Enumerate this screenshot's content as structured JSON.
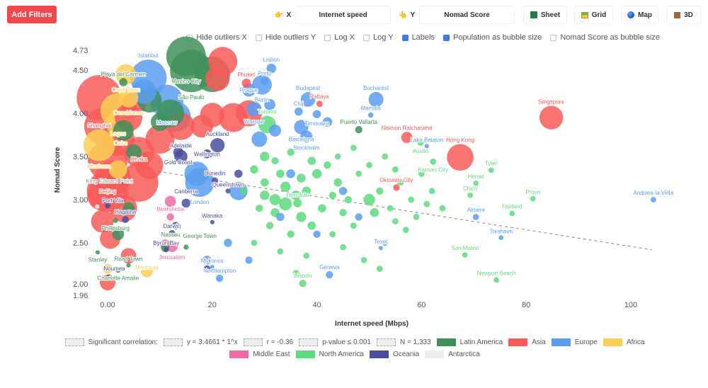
{
  "toolbar": {
    "add_filters": "Add Filters",
    "x_label": "X",
    "x_value": "Internet speed",
    "x_icon": "👉",
    "y_label": "Y",
    "y_value": "Nomad Score",
    "y_icon": "👆",
    "sheet": "Sheet",
    "grid": "Grid",
    "map": "Map",
    "three_d": "3D"
  },
  "options": [
    {
      "label": "Hide outliers X",
      "checked": false
    },
    {
      "label": "Hide outliers Y",
      "checked": false
    },
    {
      "label": "Log X",
      "checked": false
    },
    {
      "label": "Log Y",
      "checked": false
    },
    {
      "label": "Labels",
      "checked": true
    },
    {
      "label": "Population as bubble size",
      "checked": true
    },
    {
      "label": "Nomad Score as bubble size",
      "checked": false
    }
  ],
  "stats": {
    "significant": "Significant correlation:",
    "equation": "y = 3.4661 * 1^x",
    "r": "r = -0.36",
    "p": "p-value ≤ 0.001",
    "n": "N = 1,333"
  },
  "chart_data": {
    "type": "scatter",
    "xlabel": "Internet speed (Mbps)",
    "ylabel": "Nomad Score",
    "xlim": [
      -3,
      105
    ],
    "ylim": [
      1.96,
      4.73
    ],
    "x_ticks": [
      "0.00",
      "20",
      "40",
      "60",
      "80",
      "100"
    ],
    "x_tick_values": [
      0,
      20,
      40,
      60,
      80,
      100
    ],
    "y_ticks": [
      "4.73",
      "4.50",
      "4.00",
      "3.50",
      "3.00",
      "2.50",
      "2.00",
      "1.96"
    ],
    "y_tick_values": [
      4.73,
      4.5,
      4.0,
      3.5,
      3.0,
      2.5,
      2.0,
      1.96
    ],
    "trendline": {
      "x": [
        0,
        104
      ],
      "y": [
        3.42,
        2.42
      ]
    },
    "legend": [
      {
        "name": "Latin America",
        "color": "#3f8f5a"
      },
      {
        "name": "Asia",
        "color": "#f85a57"
      },
      {
        "name": "Europe",
        "color": "#5a9df0"
      },
      {
        "name": "Africa",
        "color": "#fbcf55"
      },
      {
        "name": "Middle East",
        "color": "#f06aa8"
      },
      {
        "name": "North America",
        "color": "#5cdc7e"
      },
      {
        "name": "Oceania",
        "color": "#4a4d9e"
      },
      {
        "name": "Antarctica",
        "color": "#eeeeee"
      }
    ],
    "labeled_points": [
      [
        "Shanghai",
        -1.6,
        4.18,
        "Asia",
        24
      ],
      [
        "Istanbul",
        7.8,
        4.41,
        "Europe",
        15
      ],
      [
        "São Paulo",
        16,
        4.49,
        "Latin America",
        21
      ],
      [
        "Mexico City",
        15,
        4.66,
        "Latin America",
        18
      ],
      [
        "Moscow",
        11.3,
        4.14,
        "Europe",
        12
      ],
      [
        "Cape Town",
        3.5,
        4.45,
        "Africa",
        4
      ],
      [
        "Playa del Carmen",
        3,
        4.36,
        "Latin America",
        0.3
      ],
      [
        "Casablanca",
        4,
        4.18,
        "Africa",
        3.5
      ],
      [
        "Cairo",
        2.5,
        3.88,
        "Africa",
        9
      ],
      [
        "Lagos",
        2,
        4.03,
        "Africa",
        14
      ],
      [
        "Kinshasa",
        -1.6,
        3.63,
        "Africa",
        11
      ],
      [
        "Adelaide",
        14,
        3.5,
        "Oceania",
        1.3
      ],
      [
        "Gold Coast",
        13.5,
        3.55,
        "Oceania",
        0.6
      ],
      [
        "Wellington",
        19,
        3.53,
        "Oceania",
        0.4
      ],
      [
        "Auckland",
        21,
        3.63,
        "Oceania",
        1.6
      ],
      [
        "London",
        17.6,
        3.2,
        "Europe",
        9
      ],
      [
        "Dunedin",
        20.5,
        3.22,
        "Oceania",
        0.13
      ],
      [
        "Queenstown",
        23,
        3.1,
        "Oceania",
        0.03
      ],
      [
        "Honolulu",
        36.3,
        2.96,
        "North America",
        0.35
      ],
      [
        "Lisbon",
        31.3,
        4.52,
        "Europe",
        0.5
      ],
      [
        "Porto",
        30,
        4.37,
        "Europe",
        0.24
      ],
      [
        "Berlin",
        29.5,
        4.33,
        "Europe",
        3.6
      ],
      [
        "Phuket",
        26.5,
        4.35,
        "Asia",
        0.4
      ],
      [
        "Prague",
        27,
        4.27,
        "Europe",
        1.3
      ],
      [
        "Budapest",
        38.3,
        4.16,
        "Europe",
        1.7
      ],
      [
        "Warsaw",
        28,
        4.05,
        "Europe",
        1.8
      ],
      [
        "Cluj",
        36.5,
        4.02,
        "Europe",
        0.3
      ],
      [
        "Timisoara",
        40,
        3.99,
        "Europe",
        0.3
      ],
      [
        "Pattaya",
        40.5,
        4.11,
        "Asia",
        0.1
      ],
      [
        "Barcelona",
        37,
        3.84,
        "Europe",
        1.6
      ],
      [
        "Toronto",
        30.5,
        3.87,
        "North America",
        2.7
      ],
      [
        "Stockholm",
        38,
        3.73,
        "Europe",
        1
      ],
      [
        "Bucharest",
        51.3,
        4.16,
        "Europe",
        1.8
      ],
      [
        "Mamaia",
        50.3,
        3.98,
        "Europe",
        0.05
      ],
      [
        "Puerto Vallarta",
        48,
        3.81,
        "Latin America",
        0.2
      ],
      [
        "Nakhon Ratchasima",
        57.2,
        3.72,
        "Asia",
        0.8
      ],
      [
        "Singapore",
        84.8,
        3.95,
        "Asia",
        5.6
      ],
      [
        "Hong Kong",
        67.4,
        3.49,
        "Asia",
        7.4
      ],
      [
        "Austin",
        59.8,
        3.66,
        "North America",
        0.1
      ],
      [
        "Lake Balaton",
        61,
        3.62,
        "Europe",
        0.01
      ],
      [
        "Kansas City",
        62.2,
        3.44,
        "North America",
        0.1
      ],
      [
        "Okinawa City",
        55.2,
        3.14,
        "Asia",
        0.14
      ],
      [
        "Tyler",
        73.3,
        3.34,
        "North America",
        0.05
      ],
      [
        "Hemet",
        70.4,
        3.19,
        "North America",
        0.05
      ],
      [
        "Chico",
        69.3,
        3.05,
        "North America",
        0.05
      ],
      [
        "Provo",
        81.3,
        3.01,
        "North America",
        0.05
      ],
      [
        "Fairfield",
        77.3,
        2.84,
        "North America",
        0.05
      ],
      [
        "Almere",
        70.4,
        2.8,
        "Europe",
        0.1
      ],
      [
        "Torshavn",
        75.2,
        2.56,
        "Europe",
        0.02
      ],
      [
        "San Mateo",
        68.3,
        2.36,
        "North America",
        0.05
      ],
      [
        "Newport Beach",
        74.3,
        2.07,
        "North America",
        0.05
      ],
      [
        "Andorra la Vella",
        104.3,
        3.0,
        "Europe",
        0.05
      ],
      [
        "Texel",
        52.2,
        2.44,
        "Europe",
        0.01
      ],
      [
        "Geneva",
        42.4,
        2.13,
        "Europe",
        0.2
      ],
      [
        "Lincoln",
        37.3,
        2.03,
        "North America",
        0.2
      ],
      [
        "Northampton",
        21.4,
        2.09,
        "Europe",
        0.2
      ],
      [
        "Darwin",
        12.3,
        2.61,
        "Oceania",
        0.12
      ],
      [
        "Byron Bay",
        11.2,
        2.42,
        "Oceania",
        0.03
      ],
      [
        "Jerusalem",
        12.3,
        2.46,
        "Middle East",
        0.9
      ],
      [
        "Beersheba",
        12,
        2.8,
        "Middle East",
        0.2
      ],
      [
        "Hagatna",
        3.4,
        2.77,
        "Oceania",
        0.15
      ],
      [
        "Stanley",
        -1.9,
        2.39,
        "Latin America",
        0.01
      ],
      [
        "Charlotte Amalie",
        2,
        2.18,
        "Latin America",
        0.02
      ],
      [
        "Noumea",
        0.3,
        2.1,
        "Oceania",
        0.1
      ],
      [
        "Dhaka",
        6,
        3.2,
        "Asia",
        17
      ],
      [
        "Beijing",
        0,
        3.1,
        "Asia",
        20
      ],
      [
        "Port Vila",
        0,
        2.93,
        "Oceania",
        0.05
      ],
      [
        "Road Town",
        4,
        2.24,
        "Latin America",
        0.01
      ],
      [
        "Monrovia",
        7.5,
        2.17,
        "Africa",
        1
      ],
      [
        "Nassau",
        11,
        2.44,
        "Latin America",
        0.3
      ],
      [
        "George Town",
        15,
        2.45,
        "Latin America",
        0.03
      ],
      [
        "Wanaka",
        20,
        2.74,
        "Oceania",
        0.01
      ],
      [
        "Mykonos",
        20,
        2.22,
        "Europe",
        0.01
      ],
      [
        "Canberra",
        15,
        2.96,
        "Oceania",
        0.4
      ],
      [
        "Philipsburg",
        1.5,
        2.76,
        "Latin America",
        0.04
      ],
      [
        "King Edward Point",
        -2,
        2.92,
        "Antarctica",
        0.01
      ]
    ],
    "other_points": [
      [
        -1,
        3.85,
        "Asia",
        15
      ],
      [
        2,
        3.7,
        "Asia",
        12
      ],
      [
        0,
        3.45,
        "Asia",
        18
      ],
      [
        1,
        3.25,
        "Asia",
        14
      ],
      [
        -1,
        3.05,
        "Asia",
        10
      ],
      [
        3,
        2.9,
        "Asia",
        8
      ],
      [
        -1,
        2.75,
        "Asia",
        5
      ],
      [
        0.5,
        2.55,
        "Asia",
        4
      ],
      [
        4,
        2.35,
        "Asia",
        2
      ],
      [
        0,
        2.04,
        "Asia",
        2
      ],
      [
        6,
        3.55,
        "Asia",
        10
      ],
      [
        10,
        3.7,
        "Asia",
        9
      ],
      [
        14,
        3.85,
        "Asia",
        8
      ],
      [
        8,
        3.4,
        "Asia",
        8
      ],
      [
        20,
        3.98,
        "Asia",
        6
      ],
      [
        22,
        4.6,
        "Asia",
        9
      ],
      [
        21,
        4.4,
        "Asia",
        6
      ],
      [
        24,
        3.95,
        "Asia",
        9
      ],
      [
        27,
        4.0,
        "Asia",
        7
      ],
      [
        18,
        3.85,
        "Asia",
        5
      ],
      [
        5,
        4.1,
        "Asia",
        6
      ],
      [
        4,
        3.95,
        "Asia",
        8
      ],
      [
        20,
        4.45,
        "Latin America",
        14
      ],
      [
        8,
        4.15,
        "Latin America",
        6
      ],
      [
        12,
        4.0,
        "Latin America",
        8
      ],
      [
        3,
        3.8,
        "Latin America",
        4
      ],
      [
        10,
        3.9,
        "Latin America",
        3
      ],
      [
        5,
        3.55,
        "Latin America",
        2
      ],
      [
        2,
        2.6,
        "Latin America",
        1
      ],
      [
        4,
        2.9,
        "Latin America",
        1
      ],
      [
        7,
        4.25,
        "Europe",
        6
      ],
      [
        13,
        3.96,
        "Europe",
        10
      ],
      [
        17,
        3.3,
        "Europe",
        6
      ],
      [
        25,
        3.1,
        "Europe",
        3
      ],
      [
        29,
        3.7,
        "Europe",
        2
      ],
      [
        32,
        3.8,
        "Europe",
        1
      ],
      [
        31,
        4.1,
        "Europe",
        0.8
      ],
      [
        42,
        3.9,
        "Europe",
        0.5
      ],
      [
        35,
        3.3,
        "Europe",
        0.4
      ],
      [
        45,
        3.1,
        "Europe",
        0.3
      ],
      [
        48,
        2.8,
        "Europe",
        0.2
      ],
      [
        19,
        2.3,
        "Europe",
        0.4
      ],
      [
        23,
        2.5,
        "Europe",
        0.3
      ],
      [
        27,
        2.3,
        "Europe",
        0.2
      ],
      [
        40,
        2.6,
        "Europe",
        0.2
      ],
      [
        33,
        2.8,
        "Europe",
        0.3
      ],
      [
        0,
        2.2,
        "Africa",
        0.5
      ],
      [
        2,
        3.35,
        "Africa",
        3
      ],
      [
        12,
        2.98,
        "Middle East",
        0.8
      ],
      [
        11,
        2.48,
        "Middle East",
        0.6
      ],
      [
        13,
        2.7,
        "Oceania",
        0.2
      ],
      [
        19,
        2.2,
        "Oceania",
        0.15
      ],
      [
        25,
        3.3,
        "Oceania",
        0.3
      ],
      [
        30,
        3.2,
        "North America",
        0.3
      ],
      [
        32,
        3.0,
        "North America",
        0.8
      ],
      [
        34,
        2.95,
        "North America",
        1.2
      ],
      [
        36,
        3.05,
        "North America",
        0.5
      ],
      [
        38,
        3.1,
        "North America",
        0.4
      ],
      [
        33,
        3.3,
        "North America",
        0.3
      ],
      [
        40,
        3.3,
        "North America",
        0.5
      ],
      [
        42,
        3.4,
        "North America",
        0.2
      ],
      [
        44,
        3.2,
        "North America",
        0.3
      ],
      [
        46,
        3.0,
        "North America",
        0.2
      ],
      [
        48,
        3.3,
        "North America",
        0.1
      ],
      [
        50,
        3.4,
        "North America",
        0.1
      ],
      [
        52,
        3.1,
        "North America",
        0.2
      ],
      [
        54,
        2.9,
        "North America",
        0.1
      ],
      [
        56,
        3.2,
        "North America",
        0.1
      ],
      [
        58,
        3.0,
        "North America",
        0.1
      ],
      [
        60,
        3.3,
        "North America",
        0.1
      ],
      [
        62,
        3.1,
        "North America",
        0.1
      ],
      [
        64,
        2.9,
        "North America",
        0.1
      ],
      [
        41,
        2.9,
        "North America",
        0.3
      ],
      [
        39,
        2.7,
        "North America",
        0.3
      ],
      [
        37,
        2.8,
        "North America",
        0.6
      ],
      [
        35,
        2.6,
        "North America",
        0.2
      ],
      [
        31,
        2.7,
        "North America",
        0.2
      ],
      [
        29,
        2.9,
        "North America",
        0.2
      ],
      [
        28,
        2.5,
        "North America",
        0.1
      ],
      [
        33,
        2.4,
        "North America",
        0.1
      ],
      [
        43,
        2.6,
        "North America",
        0.1
      ],
      [
        47,
        2.7,
        "North America",
        0.1
      ],
      [
        51,
        2.85,
        "North America",
        0.4
      ],
      [
        53,
        2.5,
        "North America",
        0.1
      ],
      [
        55,
        2.75,
        "North America",
        0.1
      ],
      [
        57,
        2.65,
        "North America",
        0.1
      ],
      [
        45,
        2.45,
        "North America",
        0.1
      ],
      [
        49,
        2.3,
        "North America",
        0.1
      ],
      [
        52,
        2.2,
        "North America",
        0.1
      ],
      [
        38,
        2.35,
        "North America",
        0.1
      ],
      [
        36,
        2.15,
        "North America",
        0.1
      ],
      [
        32,
        3.45,
        "North America",
        0.2
      ],
      [
        35,
        3.55,
        "North America",
        0.2
      ],
      [
        44,
        3.5,
        "North America",
        0.1
      ],
      [
        47,
        3.6,
        "North America",
        0.1
      ],
      [
        53,
        3.5,
        "North America",
        0.1
      ],
      [
        26,
        3.1,
        "North America",
        0.2
      ],
      [
        28,
        3.35,
        "North America",
        0.3
      ],
      [
        30,
        3.5,
        "North America",
        0.5
      ],
      [
        34,
        3.15,
        "North America",
        0.6
      ],
      [
        37,
        3.25,
        "North America",
        0.4
      ],
      [
        39,
        3.45,
        "North America",
        0.3
      ],
      [
        43,
        3.05,
        "North America",
        0.2
      ],
      [
        45,
        2.85,
        "North America",
        0.2
      ],
      [
        50,
        3.0,
        "North America",
        0.9
      ],
      [
        55,
        3.35,
        "North America",
        0.1
      ],
      [
        59,
        2.8,
        "North America",
        0.1
      ],
      [
        61,
        2.95,
        "North America",
        0.1
      ],
      [
        32,
        2.85,
        "North America",
        0.4
      ],
      [
        30,
        3.05,
        "North America",
        0.5
      ]
    ]
  }
}
